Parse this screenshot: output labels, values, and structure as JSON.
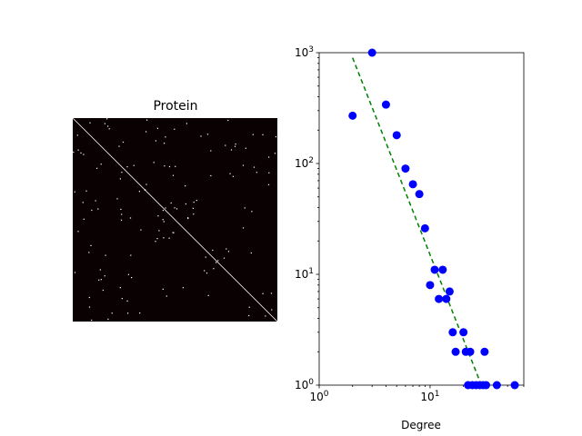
{
  "chart_data": [
    {
      "type": "heatmap",
      "title": "Protein",
      "colors": {
        "background": "#0a0202",
        "diagonal": "#ffffff",
        "entries": "#ffffff"
      }
    },
    {
      "type": "scatter",
      "xscale": "log",
      "yscale": "log",
      "xlabel": "Degree",
      "xlim": [
        1,
        70
      ],
      "ylim": [
        1,
        1000
      ],
      "grid": false,
      "x_ticks": [
        {
          "base": "10",
          "exp": "0",
          "value": 1
        },
        {
          "base": "10",
          "exp": "1",
          "value": 10
        }
      ],
      "y_ticks": [
        {
          "base": "10",
          "exp": "0",
          "value": 1
        },
        {
          "base": "10",
          "exp": "1",
          "value": 10
        },
        {
          "base": "10",
          "exp": "2",
          "value": 100
        },
        {
          "base": "10",
          "exp": "3",
          "value": 1000
        }
      ],
      "points": [
        [
          2,
          270
        ],
        [
          3,
          1000
        ],
        [
          4,
          340
        ],
        [
          5,
          180
        ],
        [
          6,
          90
        ],
        [
          7,
          65
        ],
        [
          8,
          53
        ],
        [
          9,
          26
        ],
        [
          10,
          8
        ],
        [
          11,
          11
        ],
        [
          12,
          6
        ],
        [
          13,
          11
        ],
        [
          14,
          6
        ],
        [
          15,
          7
        ],
        [
          16,
          3
        ],
        [
          17,
          2
        ],
        [
          20,
          3
        ],
        [
          21,
          2
        ],
        [
          23,
          2
        ],
        [
          22,
          1
        ],
        [
          24,
          1
        ],
        [
          26,
          1
        ],
        [
          28,
          1
        ],
        [
          30,
          1
        ],
        [
          32,
          1
        ],
        [
          31,
          2
        ],
        [
          40,
          1
        ],
        [
          58,
          1
        ]
      ],
      "fit_line": {
        "x": [
          2,
          29
        ],
        "y": [
          900,
          1
        ]
      },
      "colors": {
        "points": "#0000ff",
        "fit": "#008000"
      }
    }
  ]
}
